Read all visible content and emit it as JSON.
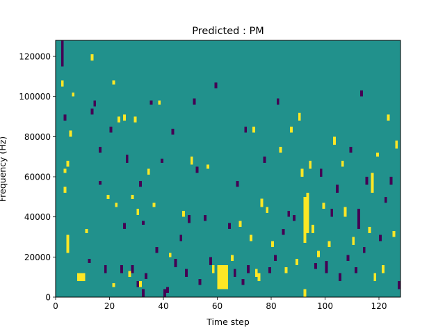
{
  "chart_data": {
    "type": "heatmap",
    "title": "Predicted : PM",
    "xlabel": "Time step",
    "ylabel": "Frequency (Hz)",
    "xlim": [
      0,
      128
    ],
    "ylim": [
      0,
      128000
    ],
    "rows": 128,
    "cols": 128,
    "row_height": 1000,
    "x_ticks": [
      0,
      20,
      40,
      60,
      80,
      100,
      120
    ],
    "x_tick_labels": [
      "0",
      "20",
      "40",
      "60",
      "80",
      "100",
      "120"
    ],
    "y_ticks": [
      0,
      20000,
      40000,
      60000,
      80000,
      100000,
      120000
    ],
    "y_tick_labels": [
      "0",
      "20000",
      "40000",
      "60000",
      "80000",
      "100000",
      "120000"
    ],
    "colors": {
      "low": "#440154",
      "mid": "#21918c",
      "high": "#fde725"
    },
    "value_meaning": "cell values: -1 low (dark purple), 0 background (teal), 1 high (yellow)",
    "background_value": 0,
    "segments": [
      {
        "x": 2,
        "y0": 115000,
        "y1": 128000,
        "v": -1
      },
      {
        "x": 2,
        "y0": 105000,
        "y1": 108000,
        "v": 1
      },
      {
        "x": 3,
        "y0": 88000,
        "y1": 91000,
        "v": -1
      },
      {
        "x": 3,
        "y0": 52000,
        "y1": 55000,
        "v": 1
      },
      {
        "x": 3,
        "y0": 62000,
        "y1": 64000,
        "v": 1
      },
      {
        "x": 4,
        "y0": 22000,
        "y1": 31000,
        "v": 1
      },
      {
        "x": 4,
        "y0": 65000,
        "y1": 68000,
        "v": 1
      },
      {
        "x": 5,
        "y0": 80000,
        "y1": 83000,
        "v": 1
      },
      {
        "x": 6,
        "y0": 100000,
        "y1": 102000,
        "v": 1
      },
      {
        "x": 8,
        "y0": 8000,
        "y1": 12000,
        "v": 1
      },
      {
        "x": 9,
        "y0": 8000,
        "y1": 12000,
        "v": 1
      },
      {
        "x": 10,
        "y0": 8000,
        "y1": 12000,
        "v": 1
      },
      {
        "x": 11,
        "y0": 32000,
        "y1": 34000,
        "v": 1
      },
      {
        "x": 12,
        "y0": 17000,
        "y1": 19000,
        "v": -1
      },
      {
        "x": 13,
        "y0": 118000,
        "y1": 121000,
        "v": 1
      },
      {
        "x": 13,
        "y0": 91000,
        "y1": 94000,
        "v": -1
      },
      {
        "x": 14,
        "y0": 95000,
        "y1": 98000,
        "v": -1
      },
      {
        "x": 16,
        "y0": 56000,
        "y1": 58000,
        "v": -1
      },
      {
        "x": 16,
        "y0": 72000,
        "y1": 75000,
        "v": -1
      },
      {
        "x": 18,
        "y0": 12000,
        "y1": 16000,
        "v": -1
      },
      {
        "x": 19,
        "y0": 49000,
        "y1": 51000,
        "v": 1
      },
      {
        "x": 20,
        "y0": 82000,
        "y1": 85000,
        "v": -1
      },
      {
        "x": 21,
        "y0": 106000,
        "y1": 108000,
        "v": 1
      },
      {
        "x": 21,
        "y0": 5000,
        "y1": 7000,
        "v": 1
      },
      {
        "x": 22,
        "y0": 45000,
        "y1": 47000,
        "v": 1
      },
      {
        "x": 23,
        "y0": 87000,
        "y1": 90000,
        "v": 1
      },
      {
        "x": 24,
        "y0": 12000,
        "y1": 16000,
        "v": -1
      },
      {
        "x": 25,
        "y0": 34000,
        "y1": 37000,
        "v": -1
      },
      {
        "x": 25,
        "y0": 88000,
        "y1": 91000,
        "v": 1
      },
      {
        "x": 26,
        "y0": 67000,
        "y1": 71000,
        "v": -1
      },
      {
        "x": 27,
        "y0": 10000,
        "y1": 13000,
        "v": 1
      },
      {
        "x": 28,
        "y0": 12000,
        "y1": 16000,
        "v": -1
      },
      {
        "x": 28,
        "y0": 49000,
        "y1": 51000,
        "v": 1
      },
      {
        "x": 29,
        "y0": 87000,
        "y1": 90000,
        "v": 1
      },
      {
        "x": 30,
        "y0": 5000,
        "y1": 8000,
        "v": -1
      },
      {
        "x": 30,
        "y0": 41000,
        "y1": 44000,
        "v": 1
      },
      {
        "x": 31,
        "y0": 5000,
        "y1": 8000,
        "v": 1
      },
      {
        "x": 31,
        "y0": 55000,
        "y1": 58000,
        "v": -1
      },
      {
        "x": 32,
        "y0": 0,
        "y1": 4000,
        "v": -1
      },
      {
        "x": 32,
        "y0": 36000,
        "y1": 38000,
        "v": -1
      },
      {
        "x": 33,
        "y0": 9000,
        "y1": 12000,
        "v": -1
      },
      {
        "x": 34,
        "y0": 61000,
        "y1": 64000,
        "v": 1
      },
      {
        "x": 35,
        "y0": 96000,
        "y1": 98000,
        "v": -1
      },
      {
        "x": 36,
        "y0": 45000,
        "y1": 47000,
        "v": 1
      },
      {
        "x": 37,
        "y0": 22000,
        "y1": 25000,
        "v": -1
      },
      {
        "x": 38,
        "y0": 96000,
        "y1": 98000,
        "v": 1
      },
      {
        "x": 39,
        "y0": 67000,
        "y1": 69000,
        "v": -1
      },
      {
        "x": 40,
        "y0": 0,
        "y1": 4000,
        "v": -1
      },
      {
        "x": 41,
        "y0": 2000,
        "y1": 5000,
        "v": -1
      },
      {
        "x": 42,
        "y0": 20000,
        "y1": 22000,
        "v": 1
      },
      {
        "x": 43,
        "y0": 81000,
        "y1": 84000,
        "v": -1
      },
      {
        "x": 44,
        "y0": 15000,
        "y1": 19000,
        "v": -1
      },
      {
        "x": 46,
        "y0": 28000,
        "y1": 31000,
        "v": -1
      },
      {
        "x": 47,
        "y0": 40000,
        "y1": 43000,
        "v": 1
      },
      {
        "x": 48,
        "y0": 10000,
        "y1": 14000,
        "v": -1
      },
      {
        "x": 49,
        "y0": 37000,
        "y1": 41000,
        "v": -1
      },
      {
        "x": 50,
        "y0": 66000,
        "y1": 70000,
        "v": 1
      },
      {
        "x": 51,
        "y0": 96000,
        "y1": 99000,
        "v": -1
      },
      {
        "x": 52,
        "y0": 62000,
        "y1": 65000,
        "v": -1
      },
      {
        "x": 53,
        "y0": 6000,
        "y1": 9000,
        "v": -1
      },
      {
        "x": 55,
        "y0": 38000,
        "y1": 41000,
        "v": -1
      },
      {
        "x": 56,
        "y0": 64000,
        "y1": 66000,
        "v": 1
      },
      {
        "x": 57,
        "y0": 16000,
        "y1": 20000,
        "v": -1
      },
      {
        "x": 58,
        "y0": 12000,
        "y1": 16000,
        "v": 1
      },
      {
        "x": 59,
        "y0": 104000,
        "y1": 107000,
        "v": -1
      },
      {
        "x": 60,
        "y0": 4000,
        "y1": 16000,
        "v": 1
      },
      {
        "x": 61,
        "y0": 4000,
        "y1": 16000,
        "v": 1
      },
      {
        "x": 62,
        "y0": 4000,
        "y1": 16000,
        "v": 1
      },
      {
        "x": 63,
        "y0": 4000,
        "y1": 16000,
        "v": 1
      },
      {
        "x": 64,
        "y0": 34000,
        "y1": 37000,
        "v": -1
      },
      {
        "x": 65,
        "y0": 18000,
        "y1": 21000,
        "v": 1
      },
      {
        "x": 66,
        "y0": 10000,
        "y1": 14000,
        "v": -1
      },
      {
        "x": 67,
        "y0": 55000,
        "y1": 58000,
        "v": -1
      },
      {
        "x": 68,
        "y0": 35000,
        "y1": 38000,
        "v": 1
      },
      {
        "x": 69,
        "y0": 6000,
        "y1": 9000,
        "v": -1
      },
      {
        "x": 70,
        "y0": 82000,
        "y1": 85000,
        "v": -1
      },
      {
        "x": 71,
        "y0": 12000,
        "y1": 16000,
        "v": -1
      },
      {
        "x": 72,
        "y0": 28000,
        "y1": 31000,
        "v": 1
      },
      {
        "x": 73,
        "y0": 82000,
        "y1": 85000,
        "v": 1
      },
      {
        "x": 74,
        "y0": 10000,
        "y1": 14000,
        "v": 1
      },
      {
        "x": 75,
        "y0": 8000,
        "y1": 12000,
        "v": 1
      },
      {
        "x": 76,
        "y0": 45000,
        "y1": 49000,
        "v": 1
      },
      {
        "x": 77,
        "y0": 67000,
        "y1": 70000,
        "v": -1
      },
      {
        "x": 78,
        "y0": 42000,
        "y1": 45000,
        "v": 1
      },
      {
        "x": 79,
        "y0": 12000,
        "y1": 15000,
        "v": -1
      },
      {
        "x": 80,
        "y0": 25000,
        "y1": 28000,
        "v": 1
      },
      {
        "x": 81,
        "y0": 18000,
        "y1": 21000,
        "v": -1
      },
      {
        "x": 82,
        "y0": 96000,
        "y1": 99000,
        "v": -1
      },
      {
        "x": 83,
        "y0": 72000,
        "y1": 75000,
        "v": 1
      },
      {
        "x": 84,
        "y0": 31000,
        "y1": 34000,
        "v": -1
      },
      {
        "x": 85,
        "y0": 12000,
        "y1": 15000,
        "v": 1
      },
      {
        "x": 86,
        "y0": 40000,
        "y1": 43000,
        "v": -1
      },
      {
        "x": 87,
        "y0": 82000,
        "y1": 85000,
        "v": 1
      },
      {
        "x": 88,
        "y0": 38000,
        "y1": 41000,
        "v": -1
      },
      {
        "x": 89,
        "y0": 16000,
        "y1": 19000,
        "v": 1
      },
      {
        "x": 90,
        "y0": 88000,
        "y1": 92000,
        "v": 1
      },
      {
        "x": 91,
        "y0": 60000,
        "y1": 64000,
        "v": 1
      },
      {
        "x": 92,
        "y0": 0,
        "y1": 4000,
        "v": 1
      },
      {
        "x": 92,
        "y0": 27000,
        "y1": 50000,
        "v": 1
      },
      {
        "x": 93,
        "y0": 32000,
        "y1": 52000,
        "v": 1
      },
      {
        "x": 94,
        "y0": 64000,
        "y1": 68000,
        "v": 1
      },
      {
        "x": 95,
        "y0": 32000,
        "y1": 36000,
        "v": 1
      },
      {
        "x": 96,
        "y0": 14000,
        "y1": 17000,
        "v": -1
      },
      {
        "x": 97,
        "y0": 20000,
        "y1": 23000,
        "v": 1
      },
      {
        "x": 98,
        "y0": 60000,
        "y1": 64000,
        "v": -1
      },
      {
        "x": 99,
        "y0": 44000,
        "y1": 47000,
        "v": 1
      },
      {
        "x": 100,
        "y0": 12000,
        "y1": 18000,
        "v": -1
      },
      {
        "x": 101,
        "y0": 25000,
        "y1": 28000,
        "v": 1
      },
      {
        "x": 102,
        "y0": 40000,
        "y1": 44000,
        "v": -1
      },
      {
        "x": 103,
        "y0": 76000,
        "y1": 80000,
        "v": 1
      },
      {
        "x": 104,
        "y0": 52000,
        "y1": 56000,
        "v": -1
      },
      {
        "x": 105,
        "y0": 8000,
        "y1": 12000,
        "v": -1
      },
      {
        "x": 106,
        "y0": 65000,
        "y1": 68000,
        "v": 1
      },
      {
        "x": 107,
        "y0": 40000,
        "y1": 45000,
        "v": 1
      },
      {
        "x": 108,
        "y0": 18000,
        "y1": 21000,
        "v": -1
      },
      {
        "x": 109,
        "y0": 72000,
        "y1": 75000,
        "v": -1
      },
      {
        "x": 110,
        "y0": 26000,
        "y1": 30000,
        "v": 1
      },
      {
        "x": 111,
        "y0": 12000,
        "y1": 15000,
        "v": -1
      },
      {
        "x": 112,
        "y0": 34000,
        "y1": 44000,
        "v": -1
      },
      {
        "x": 113,
        "y0": 100000,
        "y1": 103000,
        "v": -1
      },
      {
        "x": 114,
        "y0": 22000,
        "y1": 25000,
        "v": -1
      },
      {
        "x": 115,
        "y0": 56000,
        "y1": 60000,
        "v": -1
      },
      {
        "x": 116,
        "y0": 32000,
        "y1": 35000,
        "v": 1
      },
      {
        "x": 117,
        "y0": 52000,
        "y1": 62000,
        "v": 1
      },
      {
        "x": 118,
        "y0": 8000,
        "y1": 12000,
        "v": 1
      },
      {
        "x": 119,
        "y0": 70000,
        "y1": 72000,
        "v": 1
      },
      {
        "x": 120,
        "y0": 28000,
        "y1": 31000,
        "v": -1
      },
      {
        "x": 121,
        "y0": 12000,
        "y1": 16000,
        "v": 1
      },
      {
        "x": 122,
        "y0": 47000,
        "y1": 50000,
        "v": -1
      },
      {
        "x": 123,
        "y0": 88000,
        "y1": 91000,
        "v": 1
      },
      {
        "x": 124,
        "y0": 56000,
        "y1": 60000,
        "v": -1
      },
      {
        "x": 125,
        "y0": 30000,
        "y1": 33000,
        "v": 1
      },
      {
        "x": 126,
        "y0": 74000,
        "y1": 78000,
        "v": 1
      },
      {
        "x": 127,
        "y0": 4000,
        "y1": 8000,
        "v": -1
      }
    ]
  }
}
